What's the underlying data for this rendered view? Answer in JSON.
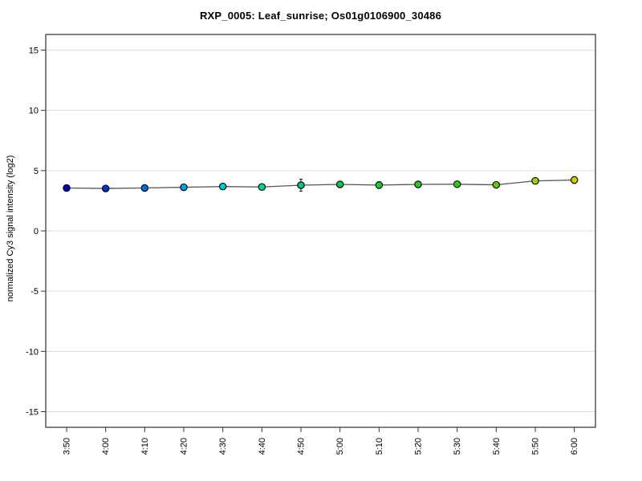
{
  "page": {
    "background_color": "#ffffff"
  },
  "chart_data": {
    "type": "line",
    "title": "RXP_0005: Leaf_sunrise; Os01g0106900_30486",
    "ylabel": "normalized Cy3 signal intensity (log2)",
    "xlabel": "",
    "categories": [
      "3:50",
      "4:00",
      "4:10",
      "4:20",
      "4:30",
      "4:40",
      "4:50",
      "5:00",
      "5:10",
      "5:20",
      "5:30",
      "5:40",
      "5:50",
      "6:00"
    ],
    "values": [
      3.56,
      3.52,
      3.56,
      3.62,
      3.68,
      3.64,
      3.79,
      3.86,
      3.8,
      3.86,
      3.87,
      3.82,
      4.15,
      4.22
    ],
    "errors": [
      0.12,
      0.12,
      0.12,
      0.15,
      0.12,
      0.12,
      0.5,
      0.22,
      0.28,
      0.18,
      0.22,
      0.18,
      0.2,
      0.28
    ],
    "point_colors": [
      "#0000b4",
      "#0032cd",
      "#0569e1",
      "#00a2e6",
      "#00c8c8",
      "#00d29b",
      "#00c878",
      "#0ac84b",
      "#1ec832",
      "#28c828",
      "#32c81e",
      "#5fc814",
      "#a0d20a",
      "#cdcd00"
    ],
    "y_ticks": [
      15,
      10,
      5,
      0,
      -5,
      -10,
      -15
    ],
    "ylim": [
      -16.3,
      16.3
    ],
    "grid": "horizontal",
    "legend": "none",
    "colors": {
      "gridline": "#dcdcdc",
      "frame": "#3f3f3f",
      "series_line": "#555555",
      "marker_outline": "#000000",
      "error_bar": "#1a1a1a",
      "tick": "#333333",
      "tick_label": "#000000"
    }
  }
}
